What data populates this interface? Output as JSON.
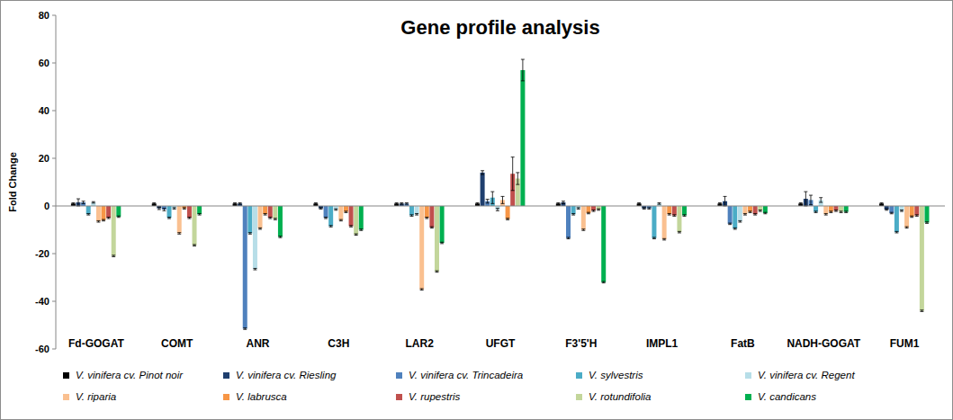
{
  "chart_data": {
    "type": "bar",
    "title": "Gene profile analysis",
    "y_label": "Fold Change",
    "categories": [
      "Fd-GOGAT",
      "COMT",
      "ANR",
      "C3H",
      "LAR2",
      "UFGT",
      "F3'5'H",
      "IMPL1",
      "FatB",
      "NADH-GOGAT",
      "FUM1"
    ],
    "ylim": [
      -60,
      80
    ],
    "yticks": [
      -60,
      -40,
      -20,
      0,
      20,
      40,
      60,
      80
    ],
    "grid": false,
    "legend": "bottom",
    "series": [
      {
        "name": "V. vinifera cv. Pinot noir",
        "color": "#000000",
        "values": [
          1,
          1,
          1,
          1,
          1,
          1,
          1,
          1,
          1,
          1,
          1
        ],
        "errors": [
          0.3,
          0.3,
          0.3,
          0.3,
          0.3,
          0.3,
          0.3,
          0.3,
          0.3,
          0.3,
          0.3
        ]
      },
      {
        "name": "V. vinifera cv. Riesling",
        "color": "#1f3f6e",
        "values": [
          1.5,
          -1,
          1,
          -1,
          1,
          14,
          1.5,
          -1,
          2,
          3,
          -1.5
        ],
        "errors": [
          1.5,
          0.5,
          0.3,
          0.3,
          0.3,
          0.8,
          0.5,
          0.3,
          2,
          3,
          0.3
        ]
      },
      {
        "name": "V. vinifera cv. Trincadeira",
        "color": "#4f81bd",
        "values": [
          1.5,
          -1.5,
          -51.5,
          -5,
          1,
          2,
          -13.5,
          -1,
          -7.5,
          2.5,
          -3
        ],
        "errors": [
          0.5,
          0.5,
          0.3,
          0.3,
          0.3,
          0.8,
          0.3,
          0.3,
          0.3,
          2,
          0.3
        ]
      },
      {
        "name": "V. sylvestris",
        "color": "#4bacc6",
        "values": [
          -3.5,
          -5,
          -11.5,
          -8.5,
          -4,
          3.5,
          -3.5,
          -13.5,
          -9.5,
          -2.5,
          -11
        ],
        "errors": [
          0.3,
          0.3,
          0.3,
          0.3,
          0.3,
          2.5,
          0.3,
          0.3,
          0.3,
          0.3,
          0.3
        ]
      },
      {
        "name": "V. vinifera cv. Regent",
        "color": "#b7dee8",
        "values": [
          1.5,
          -1,
          -26.5,
          -1.5,
          -3.5,
          -1.5,
          -1,
          1,
          -6.5,
          2.5,
          -2
        ],
        "errors": [
          0.3,
          0.3,
          0.3,
          0.3,
          0.3,
          0.5,
          0.3,
          0.3,
          0.3,
          1,
          0.3
        ]
      },
      {
        "name": "V. riparia",
        "color": "#fac090",
        "values": [
          -6.5,
          -11.5,
          -9.5,
          -6,
          -35,
          2.5,
          -10,
          -14,
          -3.5,
          -3.5,
          -9
        ],
        "errors": [
          0.3,
          0.3,
          0.3,
          0.3,
          0.3,
          1.5,
          0.3,
          0.3,
          0.3,
          0.3,
          0.3
        ]
      },
      {
        "name": "V. labrusca",
        "color": "#f79646",
        "values": [
          -6,
          -1,
          -3.5,
          -2.5,
          -5,
          -5.5,
          -3,
          -3.5,
          -2.5,
          -2.5,
          -4.5
        ],
        "errors": [
          0.3,
          0.3,
          0.3,
          0.3,
          0.3,
          0.3,
          0.3,
          0.3,
          0.3,
          0.3,
          0.3
        ]
      },
      {
        "name": "V. rupestris",
        "color": "#c0504d",
        "values": [
          -5,
          -5,
          -5,
          -8.5,
          -9,
          13.5,
          -2,
          -4,
          -3.5,
          -2,
          -4
        ],
        "errors": [
          0.3,
          0.3,
          0.3,
          0.3,
          0.3,
          7,
          0.3,
          0.3,
          0.3,
          0.3,
          0.3
        ]
      },
      {
        "name": "V. rotundifolia",
        "color": "#c3d69b",
        "values": [
          -21,
          -16.5,
          -5.5,
          -12,
          -27.5,
          11.5,
          -1.5,
          -11,
          -2,
          -2.5,
          -44
        ],
        "errors": [
          0.3,
          0.3,
          0.3,
          0.3,
          0.3,
          2.5,
          0.3,
          0.3,
          0.3,
          0.3,
          0.3
        ]
      },
      {
        "name": "V. candicans",
        "color": "#00b050",
        "values": [
          -4.5,
          -3.5,
          -13,
          -10,
          -15.5,
          57,
          -32,
          -4,
          -3,
          -2.5,
          -7
        ],
        "errors": [
          0.3,
          0.3,
          0.3,
          0.3,
          0.3,
          4.5,
          0.3,
          0.3,
          0.3,
          0.3,
          0.3
        ]
      }
    ]
  }
}
